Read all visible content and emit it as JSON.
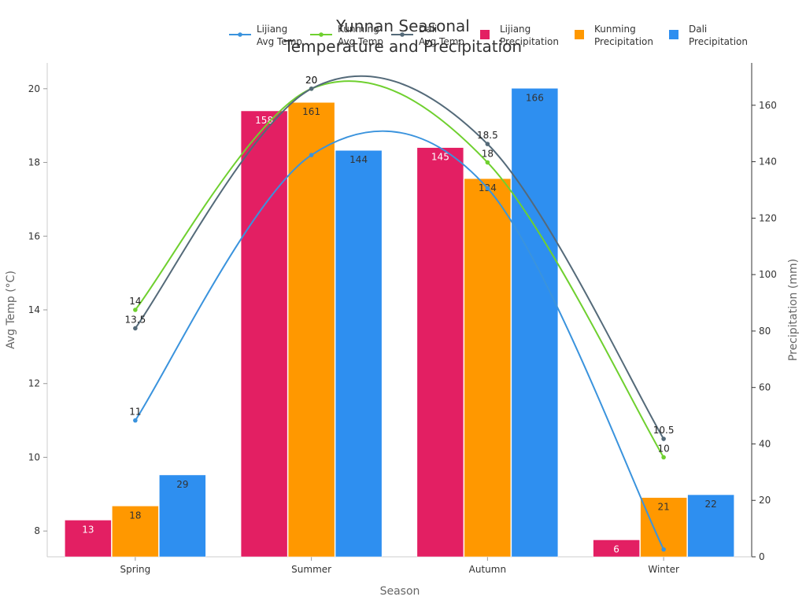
{
  "chart_data": {
    "type": "bar",
    "title_lines": [
      "Yunnan Seasonal",
      "Temperature and Precipitation"
    ],
    "xlabel": "Season",
    "ylabel_left": "Avg Temp (°C)",
    "ylabel_right": "Precipitation (mm)",
    "categories": [
      "Spring",
      "Summer",
      "Autumn",
      "Winter"
    ],
    "y_left_range": [
      7.3,
      20.7
    ],
    "y_left_ticks": [
      8,
      10,
      12,
      14,
      16,
      18,
      20
    ],
    "y_right_range": [
      0,
      175
    ],
    "y_right_ticks": [
      0,
      20,
      40,
      60,
      80,
      100,
      120,
      140,
      160
    ],
    "grid": false,
    "legend_position": "top",
    "bar_series": [
      {
        "name_lines": [
          "Lijiang",
          "Precipitation"
        ],
        "color": "#E31F63",
        "label_color": "#ffffff",
        "values": [
          13,
          158,
          145,
          6
        ]
      },
      {
        "name_lines": [
          "Kunming",
          "Precipitation"
        ],
        "color": "#FF9800",
        "label_color": "#333333",
        "values": [
          18,
          161,
          134,
          21
        ]
      },
      {
        "name_lines": [
          "Dali",
          "Precipitation"
        ],
        "color": "#2E8FF0",
        "label_color": "#333333",
        "values": [
          29,
          144,
          166,
          22
        ]
      }
    ],
    "line_series": [
      {
        "name_lines": [
          "Lijiang",
          "Avg Temp"
        ],
        "color": "#3A93DD",
        "values": [
          11,
          18.2,
          17.3,
          7.5
        ],
        "point_labels": [
          "11",
          "",
          "",
          ""
        ]
      },
      {
        "name_lines": [
          "Kunming",
          "Avg Temp"
        ],
        "color": "#6FD02F",
        "values": [
          14,
          20,
          18,
          10
        ],
        "point_labels": [
          "14",
          "20",
          "18",
          "10"
        ]
      },
      {
        "name_lines": [
          "Dali",
          "Avg Temp"
        ],
        "color": "#546A79",
        "values": [
          13.5,
          20,
          18.5,
          10.5
        ],
        "point_labels": [
          "13.5",
          "20",
          "18.5",
          "10.5"
        ]
      }
    ]
  }
}
